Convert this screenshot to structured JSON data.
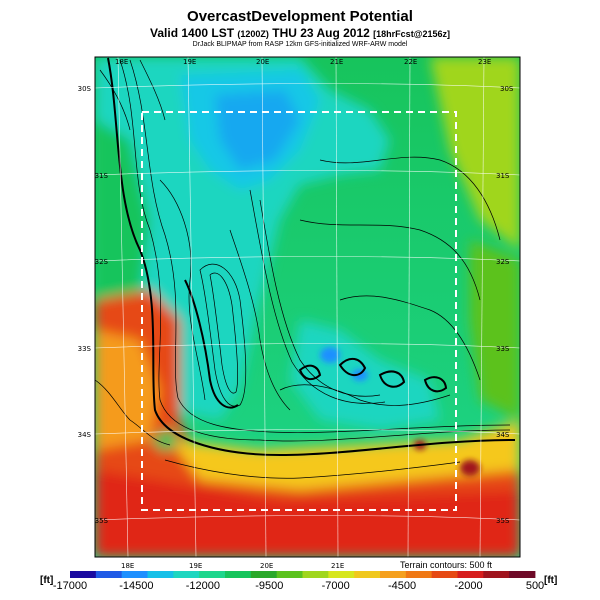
{
  "header": {
    "title": "OvercastDevelopment Potential",
    "valid_prefix": "Valid 1400 LST ",
    "valid_small_1": "(1200Z)",
    "valid_date": " THU 23 Aug 2012 ",
    "valid_small_2": "[18hrFcst@2156z]",
    "credit": "DrJack BLIPMAP from RASP 12km GFS-initialized WRF-ARW model"
  },
  "map": {
    "lon_labels_top": [
      "18E",
      "19E",
      "20E",
      "21E",
      "22E",
      "23E"
    ],
    "lon_labels_bottom": [
      "18E",
      "19E",
      "20E",
      "21E"
    ],
    "lat_labels_left": [
      "30S",
      "31S",
      "32S",
      "33S",
      "34S",
      "35S"
    ],
    "lat_labels_right": [
      "30S",
      "31S",
      "32S",
      "33S",
      "34S",
      "35S"
    ],
    "terrain_note": "Terrain contours: 500 ft"
  },
  "legend": {
    "unit_left": "[ft]",
    "unit_right": "[ft]",
    "ticks": [
      "-17000",
      "-14500",
      "-12000",
      "-9500",
      "-7000",
      "-4500",
      "-2000",
      "500"
    ],
    "tick_values": [
      -17000,
      -14500,
      -12000,
      -9500,
      -7000,
      -4500,
      -2000,
      500
    ],
    "range": [
      -17000,
      500
    ],
    "colors": [
      "#1a0aa0",
      "#1f5ae6",
      "#1e90ff",
      "#17c0e8",
      "#1fd6c0",
      "#1ed68c",
      "#17c45c",
      "#2aa82a",
      "#5cc21e",
      "#a0d61e",
      "#d6e61e",
      "#f0c81e",
      "#f5a01e",
      "#f07814",
      "#e64a14",
      "#d61e1e",
      "#a0141e",
      "#6e0a28"
    ]
  }
}
